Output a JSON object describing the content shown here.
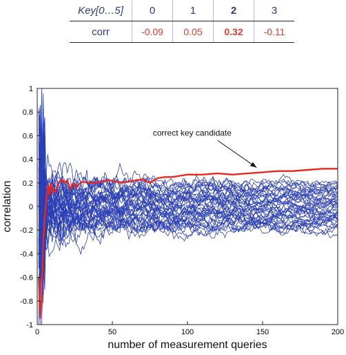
{
  "key_table": {
    "header_label": "Key[0…5]",
    "row_label": "corr",
    "key_indices": [
      "0",
      "1",
      "2",
      "3"
    ],
    "corr_values": [
      "-0.09",
      "0.05",
      "0.32",
      "-0.11"
    ],
    "highlight_index": 2
  },
  "chart_data": {
    "type": "line",
    "xlabel": "number of measurement queries",
    "ylabel": "correlation",
    "xlim": [
      0,
      200
    ],
    "ylim": [
      -1,
      1
    ],
    "xticks": [
      "0",
      "50",
      "100",
      "150",
      "200"
    ],
    "yticks": [
      "1",
      "0.8",
      "0.6",
      "0.4",
      "0.2",
      "0",
      "-0.2",
      "-0.4",
      "-0.6",
      "-0.8",
      "-1"
    ],
    "annotation": "correct key candidate",
    "grid": false,
    "colors": {
      "incorrect": "#2b3fb5",
      "correct": "#e8281e"
    },
    "background_series_count": 44,
    "background_final_range": [
      -0.2,
      0.2
    ],
    "correct_series": {
      "x": [
        1,
        2,
        3,
        4,
        5,
        6,
        7,
        8,
        9,
        10,
        12,
        14,
        16,
        18,
        20,
        22,
        24,
        26,
        28,
        30,
        35,
        40,
        45,
        50,
        55,
        60,
        65,
        70,
        75,
        80,
        85,
        90,
        95,
        100,
        110,
        120,
        130,
        140,
        150,
        160,
        170,
        180,
        190,
        200
      ],
      "y": [
        -0.6,
        -0.95,
        -0.75,
        -0.3,
        -0.1,
        0.05,
        0.18,
        0.1,
        0.2,
        0.14,
        0.12,
        0.2,
        0.23,
        0.2,
        0.22,
        0.15,
        0.2,
        0.16,
        0.19,
        0.21,
        0.2,
        0.2,
        0.22,
        0.22,
        0.2,
        0.21,
        0.22,
        0.23,
        0.2,
        0.24,
        0.25,
        0.25,
        0.26,
        0.27,
        0.27,
        0.28,
        0.27,
        0.28,
        0.29,
        0.3,
        0.3,
        0.31,
        0.32,
        0.32
      ]
    }
  }
}
